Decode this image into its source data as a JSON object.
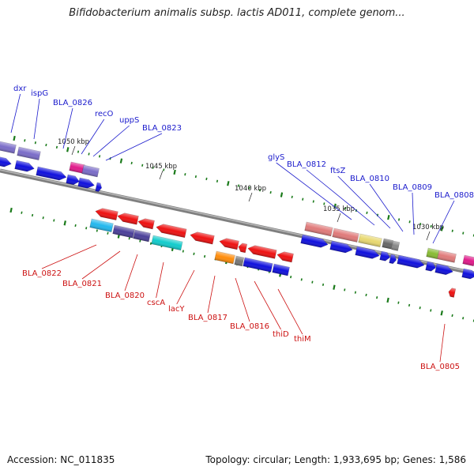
{
  "title": "Bifidobacterium animalis subsp. lactis AD011, complete genom...",
  "footer": {
    "accession": "Accession: NC_011835",
    "summary": "Topology: circular; Length: 1,933,695 bp; Genes: 1,586"
  },
  "colors": {
    "backbone": "#7f7f7f",
    "tick": "#1a7a1a",
    "forward_label": "#1a1acc",
    "reverse_label": "#cc1111"
  },
  "ruler": [
    {
      "label": "1050 kbp"
    },
    {
      "label": "1045 kbp"
    },
    {
      "label": "1040 kbp"
    },
    {
      "label": "1035 kbp"
    },
    {
      "label": "1030 kbp"
    }
  ],
  "forward_genes": [
    {
      "label": "dxr"
    },
    {
      "label": "ispG"
    },
    {
      "label": "BLA_0826"
    },
    {
      "label": "recO"
    },
    {
      "label": "uppS"
    },
    {
      "label": "BLA_0823"
    },
    {
      "label": "glyS"
    },
    {
      "label": "BLA_0812"
    },
    {
      "label": "ftsZ"
    },
    {
      "label": "BLA_0810"
    },
    {
      "label": "BLA_0809"
    },
    {
      "label": "BLA_0808"
    }
  ],
  "reverse_genes": [
    {
      "label": "BLA_0822"
    },
    {
      "label": "BLA_0821"
    },
    {
      "label": "BLA_0820"
    },
    {
      "label": "cscA"
    },
    {
      "label": "lacY"
    },
    {
      "label": "BLA_0817"
    },
    {
      "label": "BLA_0816"
    },
    {
      "label": "thiD"
    },
    {
      "label": "thiM"
    },
    {
      "label": "BLA_0805"
    }
  ]
}
